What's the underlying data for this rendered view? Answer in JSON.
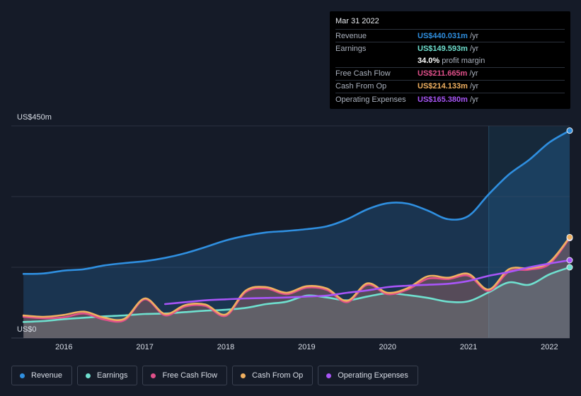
{
  "tooltip": {
    "date": "Mar 31 2022",
    "rows": [
      {
        "label": "Revenue",
        "value": "US$440.031m",
        "unit": "/yr",
        "color": "#2f8fe0"
      },
      {
        "label": "Earnings",
        "value": "US$149.593m",
        "unit": "/yr",
        "color": "#6fe0cf"
      },
      {
        "label": "",
        "value": "34.0%",
        "unit": "profit margin",
        "color": "#ffffff"
      },
      {
        "label": "Free Cash Flow",
        "value": "US$211.665m",
        "unit": "/yr",
        "color": "#e0508a"
      },
      {
        "label": "Cash From Op",
        "value": "US$214.133m",
        "unit": "/yr",
        "color": "#f0b060"
      },
      {
        "label": "Operating Expenses",
        "value": "US$165.380m",
        "unit": "/yr",
        "color": "#a855f7"
      }
    ]
  },
  "legend": [
    {
      "label": "Revenue",
      "color": "#2f8fe0"
    },
    {
      "label": "Earnings",
      "color": "#6fe0cf"
    },
    {
      "label": "Free Cash Flow",
      "color": "#e0508a"
    },
    {
      "label": "Cash From Op",
      "color": "#f0b060"
    },
    {
      "label": "Operating Expenses",
      "color": "#a855f7"
    }
  ],
  "chart_data": {
    "type": "line",
    "y_top_label": "US$450m",
    "y_bottom_label": "US$0",
    "ylim": [
      0,
      450
    ],
    "xlim": [
      2015.35,
      2022.25
    ],
    "x_ticks": [
      "2016",
      "2017",
      "2018",
      "2019",
      "2020",
      "2021",
      "2022"
    ],
    "highlight_from": 2021.25,
    "series": [
      {
        "name": "Revenue",
        "color": "#2f8fe0",
        "x": [
          2015.5,
          2015.75,
          2016.0,
          2016.25,
          2016.5,
          2016.75,
          2017.0,
          2017.25,
          2017.5,
          2017.75,
          2018.0,
          2018.25,
          2018.5,
          2018.75,
          2019.0,
          2019.25,
          2019.5,
          2019.75,
          2020.0,
          2020.25,
          2020.5,
          2020.75,
          2021.0,
          2021.25,
          2021.5,
          2021.75,
          2022.0,
          2022.25
        ],
        "y": [
          136,
          137,
          143,
          146,
          154,
          159,
          163,
          170,
          180,
          193,
          207,
          217,
          224,
          227,
          231,
          237,
          252,
          273,
          286,
          285,
          270,
          252,
          259,
          305,
          347,
          378,
          415,
          440
        ]
      },
      {
        "name": "Earnings",
        "color": "#6fe0cf",
        "x": [
          2015.5,
          2015.75,
          2016.0,
          2016.25,
          2016.5,
          2016.75,
          2017.0,
          2017.25,
          2017.5,
          2017.75,
          2018.0,
          2018.25,
          2018.5,
          2018.75,
          2019.0,
          2019.25,
          2019.5,
          2019.75,
          2020.0,
          2020.25,
          2020.5,
          2020.75,
          2021.0,
          2021.25,
          2021.5,
          2021.75,
          2022.0,
          2022.25
        ],
        "y": [
          34,
          36,
          40,
          43,
          46,
          48,
          51,
          52,
          55,
          58,
          60,
          64,
          72,
          77,
          90,
          86,
          80,
          88,
          95,
          91,
          85,
          77,
          78,
          97,
          118,
          113,
          135,
          150
        ]
      },
      {
        "name": "Free Cash Flow",
        "color": "#e0508a",
        "x": [
          2015.5,
          2015.75,
          2016.0,
          2016.25,
          2016.5,
          2016.75,
          2017.0,
          2017.25,
          2017.5,
          2017.75,
          2018.0,
          2018.25,
          2018.5,
          2018.75,
          2019.0,
          2019.25,
          2019.5,
          2019.75,
          2020.0,
          2020.25,
          2020.5,
          2020.75,
          2021.0,
          2021.25,
          2021.5,
          2021.75,
          2022.0,
          2022.25
        ],
        "y": [
          45,
          42,
          44,
          52,
          39,
          38,
          82,
          48,
          67,
          68,
          47,
          98,
          105,
          93,
          107,
          102,
          76,
          113,
          93,
          103,
          126,
          125,
          132,
          100,
          141,
          145,
          157,
          212
        ]
      },
      {
        "name": "Cash From Op",
        "color": "#f0b060",
        "x": [
          2015.5,
          2015.75,
          2016.0,
          2016.25,
          2016.5,
          2016.75,
          2017.0,
          2017.25,
          2017.5,
          2017.75,
          2018.0,
          2018.25,
          2018.5,
          2018.75,
          2019.0,
          2019.25,
          2019.5,
          2019.75,
          2020.0,
          2020.25,
          2020.5,
          2020.75,
          2021.0,
          2021.25,
          2021.5,
          2021.75,
          2022.0,
          2022.25
        ],
        "y": [
          48,
          45,
          49,
          56,
          43,
          41,
          84,
          51,
          70,
          71,
          50,
          101,
          108,
          96,
          110,
          105,
          79,
          116,
          96,
          106,
          131,
          128,
          136,
          103,
          146,
          148,
          161,
          214
        ]
      },
      {
        "name": "Operating Expenses",
        "color": "#a855f7",
        "x": [
          2017.25,
          2017.5,
          2017.75,
          2018.0,
          2018.25,
          2018.5,
          2018.75,
          2019.0,
          2019.25,
          2019.5,
          2019.75,
          2020.0,
          2020.25,
          2020.5,
          2020.75,
          2021.0,
          2021.25,
          2021.5,
          2021.75,
          2022.0,
          2022.25
        ],
        "y": [
          72,
          76,
          80,
          82,
          84,
          85,
          86,
          88,
          90,
          96,
          101,
          108,
          111,
          113,
          115,
          121,
          132,
          140,
          150,
          158,
          165
        ]
      }
    ]
  }
}
